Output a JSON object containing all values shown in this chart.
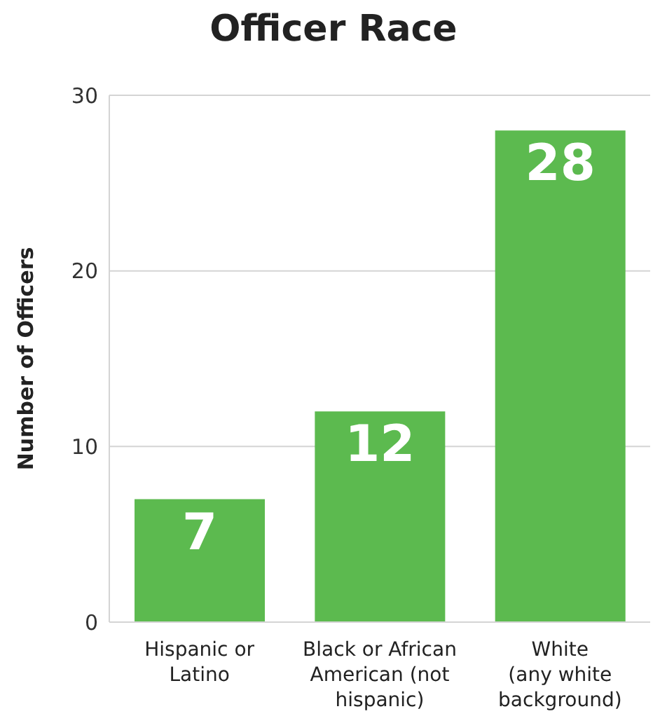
{
  "chart_data": {
    "type": "bar",
    "title": "Officer Race",
    "ylabel": "Number of Officers",
    "categories": [
      "Hispanic or\nLatino",
      "Black or African\nAmerican (not\nhispanic)",
      "White\n(any white\nbackground)"
    ],
    "values": [
      7,
      12,
      28
    ],
    "color": "#5cba4f",
    "ylim": [
      0,
      30
    ],
    "yticks": [
      0,
      10,
      20,
      30
    ],
    "grid": "y",
    "data_labels": true
  }
}
